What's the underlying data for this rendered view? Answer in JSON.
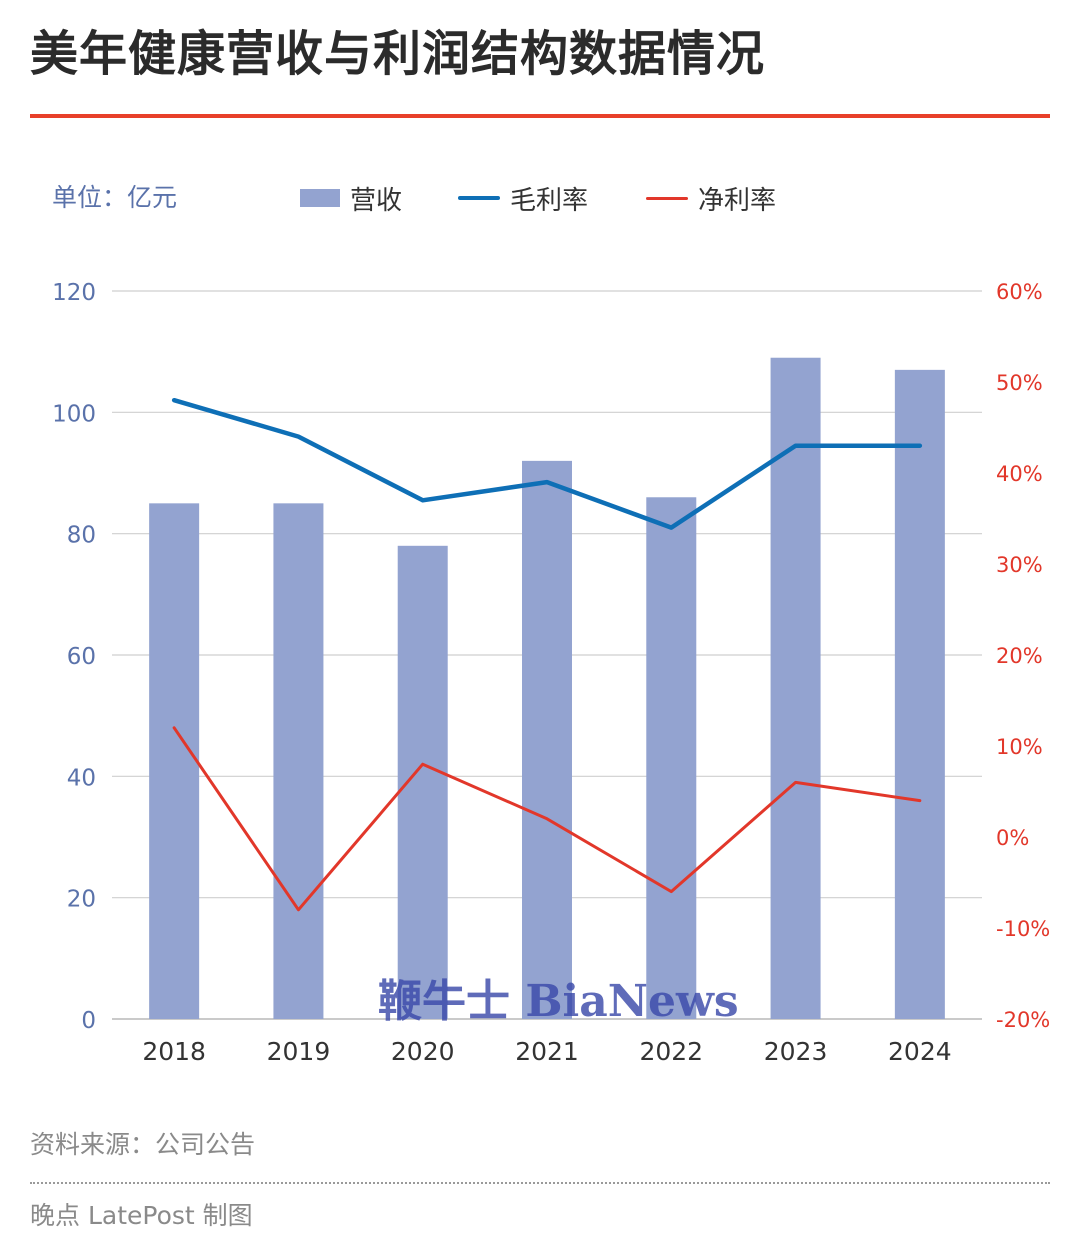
{
  "title": "美年健康营收与利润结构数据情况",
  "unit_label": "单位：亿元",
  "legend": {
    "revenue": "营收",
    "gross_margin": "毛利率",
    "net_margin": "净利率"
  },
  "watermark_text": "鞭牛士 BiaNews",
  "source": "资料来源：公司公告",
  "credit": "晚点 LatePost 制图",
  "colors": {
    "title_rule": "#e8402a",
    "bar": "#93a3d0",
    "gross_line": "#0e6fb6",
    "net_line": "#e2372a",
    "left_axis_text": "#5a72aa",
    "right_axis_text": "#e2372a",
    "grid": "#cfcfcf"
  },
  "chart_data": {
    "type": "bar",
    "categories": [
      "2018",
      "2019",
      "2020",
      "2021",
      "2022",
      "2023",
      "2024"
    ],
    "series": [
      {
        "name": "营收",
        "type": "bar",
        "axis": "left",
        "values": [
          85,
          85,
          78,
          92,
          86,
          109,
          107
        ]
      },
      {
        "name": "毛利率",
        "type": "line",
        "axis": "right",
        "values": [
          48,
          44,
          37,
          39,
          34,
          43,
          43
        ]
      },
      {
        "name": "净利率",
        "type": "line",
        "axis": "right",
        "values": [
          12,
          -8,
          8,
          2,
          -6,
          6,
          4
        ]
      }
    ],
    "y_left": {
      "ylim": [
        0,
        120
      ],
      "ticks": [
        "0",
        "20",
        "40",
        "60",
        "80",
        "100",
        "120"
      ]
    },
    "y_right": {
      "ylim": [
        -20,
        60
      ],
      "ticks": [
        "-20%",
        "-10%",
        "0%",
        "10%",
        "20%",
        "30%",
        "40%",
        "50%",
        "60%"
      ]
    },
    "grid": true,
    "legend_position": "top"
  }
}
